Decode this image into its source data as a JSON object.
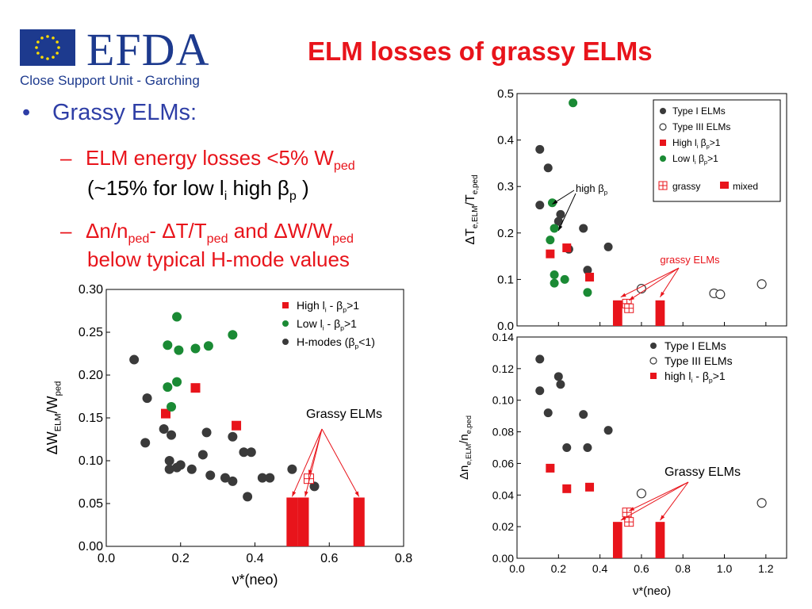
{
  "header": {
    "logo_text": "EFDA",
    "logo_subtitle": "Close Support Unit - Garching",
    "title": "ELM losses of grassy ELMs"
  },
  "bullets": {
    "bullet_mark": "•",
    "main": "Grassy ELMs:",
    "dash": "–",
    "item1_text": "ELM energy losses <5% W",
    "item1_sub": "ped",
    "item1_cont_a": "(~15% for low l",
    "item1_cont_sub": "i",
    "item1_cont_b": " high β",
    "item1_cont_sub2": "p",
    "item1_cont_c": " )",
    "item2_a": "Δn/n",
    "item2_a_sub": "ped",
    "item2_b": "- ΔT/T",
    "item2_b_sub": "ped",
    "item2_c": " and ΔW/W",
    "item2_c_sub": "ped",
    "item2_cont": "below typical H-mode values"
  },
  "chart_data": [
    {
      "type": "scatter",
      "id": "left",
      "xlabel": "ν*(neo)",
      "ylabel": "ΔW_ELM/W_ped",
      "xlim": [
        0,
        0.8
      ],
      "ylim": [
        0,
        0.3
      ],
      "xticks": [
        "0.0",
        "0.2",
        "0.4",
        "0.6",
        "0.8"
      ],
      "yticks": [
        "0.00",
        "0.05",
        "0.10",
        "0.15",
        "0.20",
        "0.25",
        "0.30"
      ],
      "legend": [
        "High l_i - β_p>1",
        "Low l_i - β_p>1",
        "H-modes (β_p<1)"
      ],
      "annotation": "Grassy ELMs",
      "series": [
        {
          "name": "High l_i - β_p>1",
          "marker": "square",
          "color": "#e8141b",
          "points": [
            [
              0.16,
              0.155
            ],
            [
              0.24,
              0.185
            ],
            [
              0.35,
              0.141
            ]
          ]
        },
        {
          "name": "Low l_i - β_p>1",
          "marker": "circle",
          "color": "#1a8a34",
          "points": [
            [
              0.165,
              0.235
            ],
            [
              0.19,
              0.268
            ],
            [
              0.195,
              0.229
            ],
            [
              0.24,
              0.231
            ],
            [
              0.275,
              0.234
            ],
            [
              0.34,
              0.247
            ],
            [
              0.165,
              0.186
            ],
            [
              0.19,
              0.192
            ],
            [
              0.175,
              0.163
            ]
          ]
        },
        {
          "name": "H-modes (β_p<1)",
          "marker": "circle",
          "color": "#3a3a3a",
          "points": [
            [
              0.075,
              0.218
            ],
            [
              0.11,
              0.173
            ],
            [
              0.105,
              0.121
            ],
            [
              0.155,
              0.137
            ],
            [
              0.175,
              0.13
            ],
            [
              0.17,
              0.1
            ],
            [
              0.17,
              0.09
            ],
            [
              0.19,
              0.092
            ],
            [
              0.2,
              0.095
            ],
            [
              0.23,
              0.09
            ],
            [
              0.26,
              0.107
            ],
            [
              0.27,
              0.133
            ],
            [
              0.28,
              0.083
            ],
            [
              0.32,
              0.08
            ],
            [
              0.34,
              0.128
            ],
            [
              0.34,
              0.076
            ],
            [
              0.37,
              0.11
            ],
            [
              0.39,
              0.11
            ],
            [
              0.38,
              0.058
            ],
            [
              0.42,
              0.08
            ],
            [
              0.44,
              0.08
            ],
            [
              0.56,
              0.07
            ],
            [
              0.5,
              0.09
            ]
          ]
        },
        {
          "name": "grassy",
          "marker": "open-square-cross",
          "color": "#e8141b",
          "points": [
            [
              0.545,
              0.079
            ]
          ]
        }
      ],
      "bars": [
        {
          "x": 0.5,
          "y": 0.057,
          "width": 0.03
        },
        {
          "x": 0.53,
          "y": 0.057,
          "width": 0.03
        },
        {
          "x": 0.68,
          "y": 0.057,
          "width": 0.03
        }
      ]
    },
    {
      "type": "scatter",
      "id": "top-right",
      "xlabel": "",
      "ylabel": "ΔT_e,ELM/T_e,ped",
      "xlim": [
        0,
        1.3
      ],
      "ylim": [
        0,
        0.5
      ],
      "yticks": [
        "0.0",
        "0.1",
        "0.2",
        "0.3",
        "0.4",
        "0.5"
      ],
      "legend": [
        "Type I ELMs",
        "Type III ELMs",
        "High l_i β_p>1",
        "Low l_i β_p>1"
      ],
      "legend_extra": [
        "grassy",
        "mixed"
      ],
      "annotation": "grassy ELMs",
      "annotation2": "high β_p",
      "series": [
        {
          "name": "Type I ELMs",
          "marker": "circle",
          "color": "#3a3a3a",
          "points": [
            [
              0.11,
              0.38
            ],
            [
              0.15,
              0.34
            ],
            [
              0.11,
              0.26
            ],
            [
              0.2,
              0.225
            ],
            [
              0.21,
              0.24
            ],
            [
              0.25,
              0.165
            ],
            [
              0.32,
              0.21
            ],
            [
              0.44,
              0.17
            ],
            [
              0.34,
              0.12
            ]
          ]
        },
        {
          "name": "Type III ELMs",
          "marker": "open-circle",
          "color": "#3a3a3a",
          "points": [
            [
              0.6,
              0.08
            ],
            [
              0.95,
              0.07
            ],
            [
              0.98,
              0.068
            ],
            [
              1.18,
              0.09
            ]
          ]
        },
        {
          "name": "High l_i β_p>1",
          "marker": "square",
          "color": "#e8141b",
          "points": [
            [
              0.16,
              0.155
            ],
            [
              0.24,
              0.168
            ],
            [
              0.35,
              0.105
            ]
          ]
        },
        {
          "name": "Low l_i β_p>1",
          "marker": "circle",
          "color": "#1a8a34",
          "points": [
            [
              0.27,
              0.48
            ],
            [
              0.17,
              0.265
            ],
            [
              0.18,
              0.21
            ],
            [
              0.16,
              0.185
            ],
            [
              0.18,
              0.11
            ],
            [
              0.23,
              0.1
            ],
            [
              0.18,
              0.092
            ],
            [
              0.34,
              0.072
            ]
          ]
        },
        {
          "name": "grassy",
          "marker": "open-square-cross",
          "color": "#e8141b",
          "points": [
            [
              0.53,
              0.048
            ],
            [
              0.54,
              0.038
            ]
          ]
        }
      ],
      "bars": [
        {
          "x": 0.485,
          "y": 0.055,
          "width": 0.045
        },
        {
          "x": 0.69,
          "y": 0.055,
          "width": 0.045
        }
      ]
    },
    {
      "type": "scatter",
      "id": "bottom-right",
      "xlabel": "ν*(neo)",
      "ylabel": "Δn_e,ELM/n_e,ped",
      "xlim": [
        0,
        1.3
      ],
      "ylim": [
        0,
        0.14
      ],
      "xticks": [
        "0.0",
        "0.2",
        "0.4",
        "0.6",
        "0.8",
        "1.0",
        "1.2"
      ],
      "yticks": [
        "0.00",
        "0.02",
        "0.04",
        "0.06",
        "0.08",
        "0.10",
        "0.12",
        "0.14"
      ],
      "legend": [
        "Type I ELMs",
        "Type III ELMs",
        "high l_i - β_p>1"
      ],
      "annotation": "Grassy ELMs",
      "series": [
        {
          "name": "Type I ELMs",
          "marker": "circle",
          "color": "#3a3a3a",
          "points": [
            [
              0.11,
              0.126
            ],
            [
              0.11,
              0.106
            ],
            [
              0.2,
              0.115
            ],
            [
              0.21,
              0.11
            ],
            [
              0.15,
              0.092
            ],
            [
              0.32,
              0.091
            ],
            [
              0.24,
              0.07
            ],
            [
              0.34,
              0.07
            ],
            [
              0.44,
              0.081
            ]
          ]
        },
        {
          "name": "Type III ELMs",
          "marker": "open-circle",
          "color": "#3a3a3a",
          "points": [
            [
              0.6,
              0.041
            ],
            [
              1.18,
              0.035
            ]
          ]
        },
        {
          "name": "high l_i - β_p>1",
          "marker": "square",
          "color": "#e8141b",
          "points": [
            [
              0.16,
              0.057
            ],
            [
              0.24,
              0.044
            ],
            [
              0.35,
              0.045
            ]
          ]
        },
        {
          "name": "grassy",
          "marker": "open-square-cross",
          "color": "#e8141b",
          "points": [
            [
              0.53,
              0.029
            ],
            [
              0.54,
              0.023
            ]
          ]
        }
      ],
      "bars": [
        {
          "x": 0.485,
          "y": 0.023,
          "width": 0.045
        },
        {
          "x": 0.69,
          "y": 0.023,
          "width": 0.045
        }
      ]
    }
  ]
}
